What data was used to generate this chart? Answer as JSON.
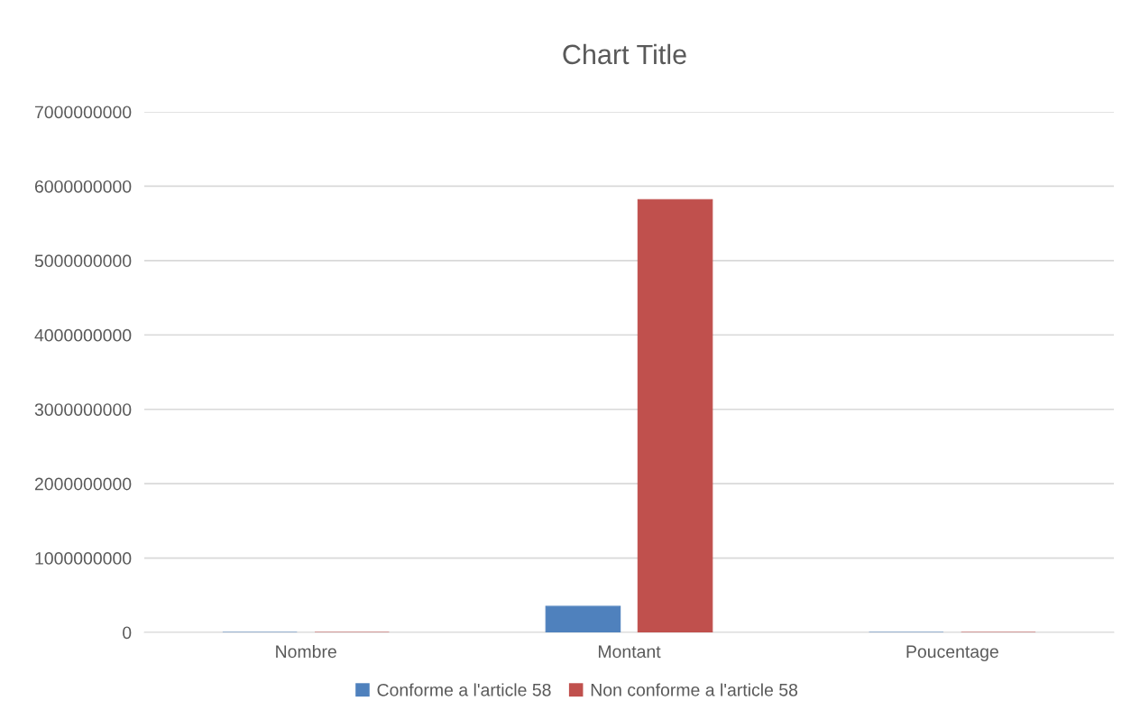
{
  "chart_data": {
    "type": "bar",
    "title": "Chart Title",
    "categories": [
      "Nombre",
      "Montant",
      "Poucentage"
    ],
    "series": [
      {
        "name": "Conforme a l'article 58",
        "color": "#4f81bd",
        "values": [
          0,
          350000000,
          0
        ]
      },
      {
        "name": "Non conforme a l'article 58",
        "color": "#c0504d",
        "values": [
          0,
          5820000000,
          0
        ]
      }
    ],
    "ylim": [
      0,
      7000000000
    ],
    "yticks": [
      0,
      1000000000,
      2000000000,
      3000000000,
      4000000000,
      5000000000,
      6000000000,
      7000000000
    ],
    "grid": "y",
    "legend": "bottom"
  }
}
